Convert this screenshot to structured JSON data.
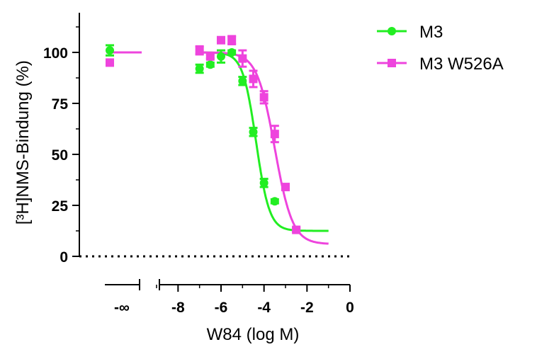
{
  "chart_data": {
    "type": "scatter",
    "xlabel": "W84 (log M)",
    "ylabel": "[³H]NMS-Bindung (%)",
    "xlim": [
      -9,
      0
    ],
    "ylim": [
      0,
      120
    ],
    "x_ticks": [
      -8,
      -6,
      -4,
      -2,
      0
    ],
    "y_ticks": [
      0,
      25,
      50,
      75,
      100
    ],
    "x_break_label": "-∞",
    "reference_line": {
      "y": 0,
      "style": "dotted"
    },
    "legend": {
      "position": "top-right"
    },
    "series": [
      {
        "name": "M3",
        "color": "#22ee22",
        "marker": "circle",
        "control_point": {
          "y": 101,
          "err": 2.5
        },
        "x": [
          -7,
          -6.5,
          -6,
          -5.5,
          -5,
          -4.5,
          -4,
          -3.5
        ],
        "y": [
          92,
          94,
          98,
          100,
          86,
          61,
          36,
          27
        ],
        "err": [
          2,
          1,
          3,
          1,
          2,
          2,
          2,
          1
        ],
        "fit": {
          "top": 100,
          "bottom": 12.5,
          "logIC50": -4.37,
          "hill": 1.4
        }
      },
      {
        "name": "M3 W526A",
        "color": "#ee44dd",
        "marker": "square",
        "control_point": {
          "y": 95,
          "err": 1
        },
        "x": [
          -7,
          -6.5,
          -6,
          -5.5,
          -5,
          -4.5,
          -4,
          -3.5,
          -3,
          -2.5
        ],
        "y": [
          101,
          98,
          106,
          106,
          97,
          87,
          78,
          60,
          34,
          13
        ],
        "err": [
          2,
          1,
          1,
          2,
          4,
          4,
          3,
          4,
          1,
          1
        ],
        "fit": {
          "top": 100,
          "bottom": 6,
          "logIC50": -3.5,
          "hill": 1.05
        }
      }
    ]
  }
}
